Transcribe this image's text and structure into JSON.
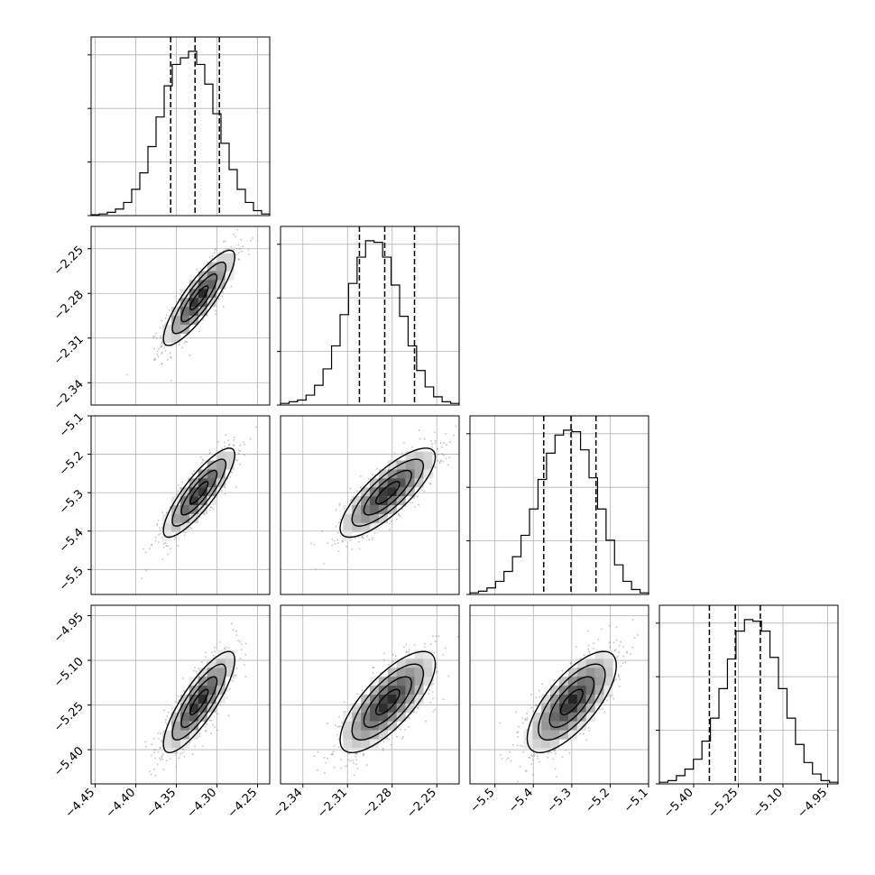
{
  "chart_data": {
    "type": "corner",
    "title": "",
    "parameters": [
      "",
      "",
      "",
      ""
    ],
    "quantile_lines": {
      "style": "dashed",
      "color": "#000000"
    },
    "diagonal_histograms": [
      {
        "xlim": [
          -4.455,
          -4.235
        ],
        "quantiles": [
          -4.357,
          -4.327,
          -4.297
        ],
        "counts": [
          0.5,
          1,
          2,
          4,
          8,
          16,
          26,
          42,
          60,
          79,
          92,
          96,
          100,
          92,
          80,
          62,
          44,
          28,
          16,
          8,
          3,
          1
        ]
      },
      {
        "xlim": [
          -2.355,
          -2.235
        ],
        "quantiles": [
          -2.302,
          -2.285,
          -2.265
        ],
        "counts": [
          1,
          2,
          3,
          6,
          12,
          22,
          36,
          55,
          74,
          90,
          100,
          99,
          90,
          73,
          54,
          36,
          21,
          11,
          5,
          2,
          1
        ]
      },
      {
        "xlim": [
          -5.565,
          -5.1
        ],
        "quantiles": [
          -5.373,
          -5.302,
          -5.237
        ],
        "counts": [
          1,
          2,
          4,
          8,
          14,
          23,
          36,
          52,
          70,
          86,
          97,
          100,
          99,
          88,
          71,
          52,
          33,
          18,
          8,
          3,
          1
        ]
      },
      {
        "xlim": [
          -5.515,
          -4.915
        ],
        "quantiles": [
          -5.347,
          -5.26,
          -5.176
        ],
        "counts": [
          1,
          2,
          5,
          9,
          15,
          26,
          40,
          58,
          76,
          93,
          100,
          99,
          93,
          77,
          58,
          40,
          24,
          13,
          6,
          2,
          1
        ]
      }
    ],
    "panels": [
      {
        "row": 1,
        "col": 0,
        "x_center": -4.322,
        "y_center": -2.283,
        "x_sd": 0.022,
        "y_sd": 0.016,
        "rho": 0.86
      },
      {
        "row": 2,
        "col": 0,
        "x_center": -4.322,
        "y_center": -5.3,
        "x_sd": 0.022,
        "y_sd": 0.058,
        "rho": 0.85
      },
      {
        "row": 2,
        "col": 1,
        "x_center": -2.283,
        "y_center": -5.3,
        "x_sd": 0.016,
        "y_sd": 0.058,
        "rho": 0.8
      },
      {
        "row": 3,
        "col": 0,
        "x_center": -4.322,
        "y_center": -5.24,
        "x_sd": 0.022,
        "y_sd": 0.085,
        "rho": 0.83
      },
      {
        "row": 3,
        "col": 1,
        "x_center": -2.283,
        "y_center": -5.24,
        "x_sd": 0.016,
        "y_sd": 0.085,
        "rho": 0.75
      },
      {
        "row": 3,
        "col": 2,
        "x_center": -5.3,
        "y_center": -5.24,
        "x_sd": 0.058,
        "y_sd": 0.085,
        "rho": 0.72
      }
    ],
    "axes": [
      {
        "lim": [
          -4.455,
          -4.235
        ],
        "ticks": [
          -4.45,
          -4.4,
          -4.35,
          -4.3,
          -4.25
        ],
        "tick_labels": [
          "−4.45",
          "−4.40",
          "−4.35",
          "−4.30",
          "−4.25"
        ]
      },
      {
        "lim": [
          -2.355,
          -2.235
        ],
        "ticks": [
          -2.34,
          -2.31,
          -2.28,
          -2.25
        ],
        "tick_labels": [
          "−2.34",
          "−2.31",
          "−2.28",
          "−2.25"
        ]
      },
      {
        "lim": [
          -5.565,
          -5.1
        ],
        "ticks": [
          -5.5,
          -5.4,
          -5.3,
          -5.2,
          -5.1
        ],
        "tick_labels": [
          "−5.5",
          "−5.4",
          "−5.3",
          "−5.2",
          "−5.1"
        ]
      },
      {
        "lim": [
          -5.515,
          -4.915
        ],
        "ticks": [
          -5.4,
          -5.25,
          -5.1,
          -4.95
        ],
        "tick_labels": [
          "−5.40",
          "−5.25",
          "−5.10",
          "−4.95"
        ]
      }
    ],
    "grid": true,
    "colors": {
      "axis": "#000000",
      "grid": "#b0b0b0",
      "contour": "#000000",
      "scatter": "#8c8c8c"
    }
  }
}
